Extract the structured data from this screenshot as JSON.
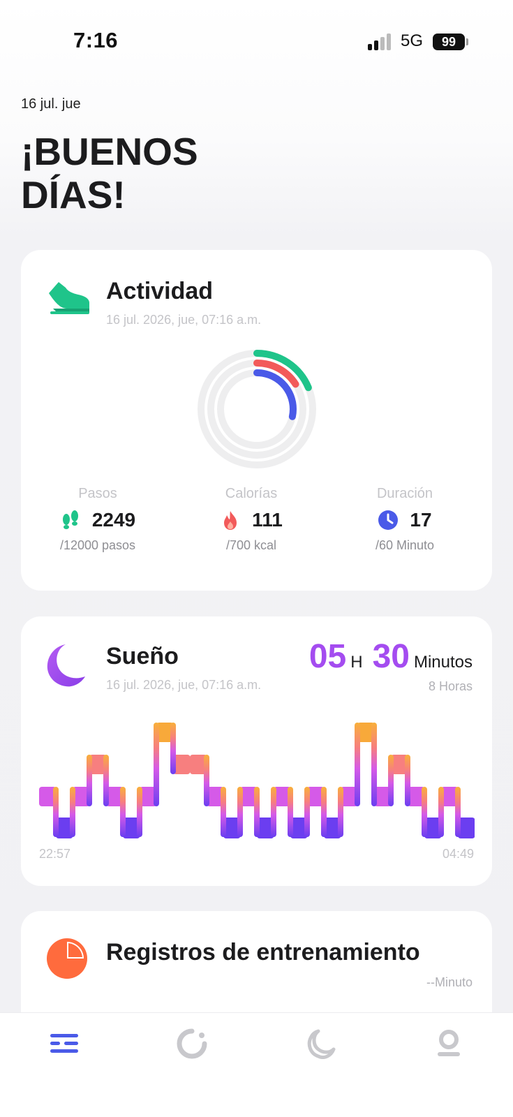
{
  "status_bar": {
    "time": "7:16",
    "network": "5G",
    "battery": "99"
  },
  "header": {
    "date": "16 jul. jue",
    "greeting": "¡BUENOS DÍAS!"
  },
  "activity": {
    "title": "Actividad",
    "timestamp": "16 jul. 2026, jue, 07:16 a.m.",
    "icon": "shoe-icon",
    "rings": [
      {
        "name": "Pasos",
        "progress": 0.187,
        "color": "#1fc48a"
      },
      {
        "name": "Calorías",
        "progress": 0.159,
        "color": "#f25a5a"
      },
      {
        "name": "Duración",
        "progress": 0.283,
        "color": "#4a5ae8"
      }
    ],
    "stats": [
      {
        "label": "Pasos",
        "value": "2249",
        "goal": "/12000 pasos",
        "icon": "footprints-icon",
        "color": "#1fc48a"
      },
      {
        "label": "Calorías",
        "value": "111",
        "goal": "/700 kcal",
        "icon": "flame-icon",
        "color": "#f25a5a"
      },
      {
        "label": "Duración",
        "value": "17",
        "goal": "/60 Minuto",
        "icon": "clock-icon",
        "color": "#4a5ae8"
      }
    ]
  },
  "sleep": {
    "title": "Sueño",
    "timestamp": "16 jul. 2026, jue, 07:16 a.m.",
    "icon": "moon-icon",
    "hours": "05",
    "hours_unit": "H",
    "minutes": "30",
    "minutes_unit": "Minutos",
    "goal": "8 Horas",
    "start_time": "22:57",
    "end_time": "04:49",
    "stage_levels": "0 = awake, 1 = REM, 2 = light, 3 = deep",
    "stages": [
      2,
      3,
      2,
      1,
      2,
      3,
      2,
      0,
      1,
      1,
      2,
      3,
      2,
      3,
      2,
      3,
      2,
      3,
      2,
      0,
      2,
      1,
      2,
      3,
      2,
      3
    ],
    "colors": {
      "awake": "#f8a93a",
      "rem": "#f77f7f",
      "light": "#d55ae8",
      "deep": "#6b3ef0"
    }
  },
  "training": {
    "title": "Registros de entrenamiento",
    "icon": "pie-icon",
    "duration": "--Minuto"
  },
  "tab_bar": {
    "items": [
      "home-tab",
      "activity-tab",
      "sleep-tab",
      "profile-tab"
    ],
    "active_color": "#4a5ae8",
    "inactive_color": "#c8c8cc"
  }
}
